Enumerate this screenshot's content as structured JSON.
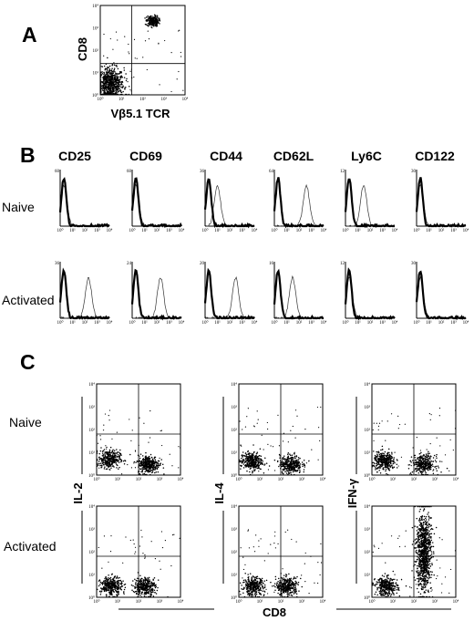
{
  "panels": [
    "A",
    "B",
    "C"
  ],
  "panelA": {
    "xlabel": "Vβ5.1 TCR",
    "ylabel": "CD8"
  },
  "panelB": {
    "markers": [
      "CD25",
      "CD69",
      "CD44",
      "CD62L",
      "Ly6C",
      "CD122"
    ],
    "rows": [
      "Naive",
      "Activated"
    ]
  },
  "panelC": {
    "rows": [
      "Naive",
      "Activated"
    ],
    "ylabels": [
      "IL-2",
      "IL-4",
      "IFN-γ"
    ],
    "xlabel": "CD8"
  },
  "log_ticks": [
    "10⁰",
    "10¹",
    "10²",
    "10³",
    "10⁴"
  ],
  "chart_data": [
    {
      "type": "scatter",
      "panel": "A",
      "xlabel": "Vβ5.1 TCR",
      "ylabel": "CD8",
      "xscale": "log",
      "yscale": "log",
      "xlim": [
        1,
        10000
      ],
      "ylim": [
        1,
        10000
      ],
      "clusters": [
        {
          "x": 3,
          "y": 3,
          "description": "double-negative cluster"
        },
        {
          "x": 300,
          "y": 2000,
          "description": "Vβ5.1+ CD8+ cluster"
        }
      ]
    },
    {
      "type": "line",
      "panel": "B",
      "xscale": "log",
      "markers": [
        "CD25",
        "CD69",
        "CD44",
        "CD62L",
        "Ly6C",
        "CD122"
      ],
      "rows": [
        "Naive",
        "Activated"
      ],
      "yaxis_max": {
        "Naive": [
          60,
          60,
          36,
          64,
          12,
          30
        ],
        "Activated": [
          36,
          24,
          20,
          16,
          12,
          30
        ]
      },
      "peaks": {
        "Naive": {
          "control": [
            2,
            2,
            2,
            2,
            2,
            2
          ],
          "stained": [
            2,
            2,
            10,
            400,
            30,
            2
          ]
        },
        "Activated": {
          "control": [
            2,
            2,
            2,
            2,
            2,
            2
          ],
          "stained": [
            200,
            200,
            300,
            30,
            2,
            2
          ]
        }
      }
    },
    {
      "type": "scatter",
      "panel": "C",
      "xlabel": "CD8",
      "ylabels": [
        "IL-2",
        "IL-4",
        "IFN-γ"
      ],
      "rows": [
        "Naive",
        "Activated"
      ],
      "xscale": "log",
      "yscale": "log",
      "xlim": [
        1,
        10000
      ],
      "ylim": [
        1,
        10000
      ],
      "clusters": [
        {
          "row": "Naive",
          "col": 0,
          "x": 4,
          "y": 5
        },
        {
          "row": "Naive",
          "col": 0,
          "x": 300,
          "y": 3
        },
        {
          "row": "Naive",
          "col": 1,
          "x": 4,
          "y": 4
        },
        {
          "row": "Naive",
          "col": 1,
          "x": 300,
          "y": 3
        },
        {
          "row": "Naive",
          "col": 2,
          "x": 4,
          "y": 4
        },
        {
          "row": "Naive",
          "col": 2,
          "x": 300,
          "y": 3
        },
        {
          "row": "Activated",
          "col": 0,
          "x": 5,
          "y": 3
        },
        {
          "row": "Activated",
          "col": 0,
          "x": 200,
          "y": 3
        },
        {
          "row": "Activated",
          "col": 1,
          "x": 5,
          "y": 3
        },
        {
          "row": "Activated",
          "col": 1,
          "x": 200,
          "y": 3
        },
        {
          "row": "Activated",
          "col": 2,
          "x": 5,
          "y": 3
        },
        {
          "row": "Activated",
          "col": 2,
          "x": 300,
          "y": 100
        }
      ]
    }
  ]
}
